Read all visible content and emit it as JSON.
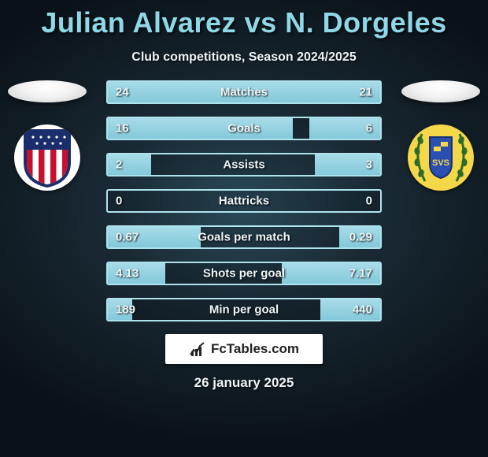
{
  "title": "Julian Alvarez vs N. Dorgeles",
  "subtitle": "Club competitions, Season 2024/2025",
  "date": "26 january 2025",
  "brand_text": "FcTables.com",
  "colors": {
    "title": "#8fd8e8",
    "border": "#aee3ee",
    "bar": "#84c9da",
    "text": "#eef6f8",
    "bg_center": "#2a4a5a",
    "bg_edge": "#0a1218"
  },
  "club_left": {
    "name": "Atletico Madrid",
    "crest_bg": "#ffffff",
    "stripes": [
      "#c8102e",
      "#ffffff"
    ],
    "accent": "#1a2e6b"
  },
  "club_right": {
    "name": "Opponent",
    "crest_bg": "#f5d84a",
    "shield": "#2a4fb0",
    "wreath": "#2e6b2a"
  },
  "stats": [
    {
      "label": "Matches",
      "left_val": "24",
      "right_val": "21",
      "left_pct": 53,
      "right_pct": 47
    },
    {
      "label": "Goals",
      "left_val": "16",
      "right_val": "6",
      "left_pct": 68,
      "right_pct": 26
    },
    {
      "label": "Assists",
      "left_val": "2",
      "right_val": "3",
      "left_pct": 16,
      "right_pct": 24
    },
    {
      "label": "Hattricks",
      "left_val": "0",
      "right_val": "0",
      "left_pct": 0,
      "right_pct": 0
    },
    {
      "label": "Goals per match",
      "left_val": "0.67",
      "right_val": "0.29",
      "left_pct": 34,
      "right_pct": 15
    },
    {
      "label": "Shots per goal",
      "left_val": "4.13",
      "right_val": "7.17",
      "left_pct": 21,
      "right_pct": 36
    },
    {
      "label": "Min per goal",
      "left_val": "189",
      "right_val": "440",
      "left_pct": 9,
      "right_pct": 22
    }
  ]
}
